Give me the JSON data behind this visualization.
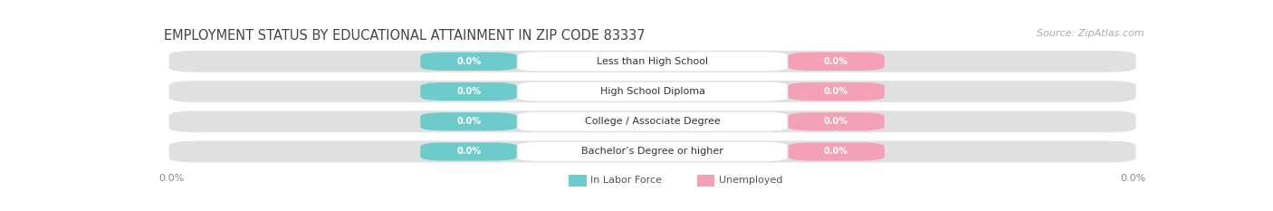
{
  "title": "EMPLOYMENT STATUS BY EDUCATIONAL ATTAINMENT IN ZIP CODE 83337",
  "source": "Source: ZipAtlas.com",
  "categories": [
    "Less than High School",
    "High School Diploma",
    "College / Associate Degree",
    "Bachelor’s Degree or higher"
  ],
  "in_labor_force": [
    0.0,
    0.0,
    0.0,
    0.0
  ],
  "unemployed": [
    0.0,
    0.0,
    0.0,
    0.0
  ],
  "bar_bg_color": "#e0e0e0",
  "labor_force_color": "#6dcbcc",
  "unemployed_color": "#f4a0b5",
  "xlim_left": "0.0%",
  "xlim_right": "0.0%",
  "title_fontsize": 10.5,
  "source_fontsize": 8,
  "background_color": "#ffffff",
  "legend_labor": "In Labor Force",
  "legend_unemployed": "Unemployed",
  "value_text": "0.0%"
}
